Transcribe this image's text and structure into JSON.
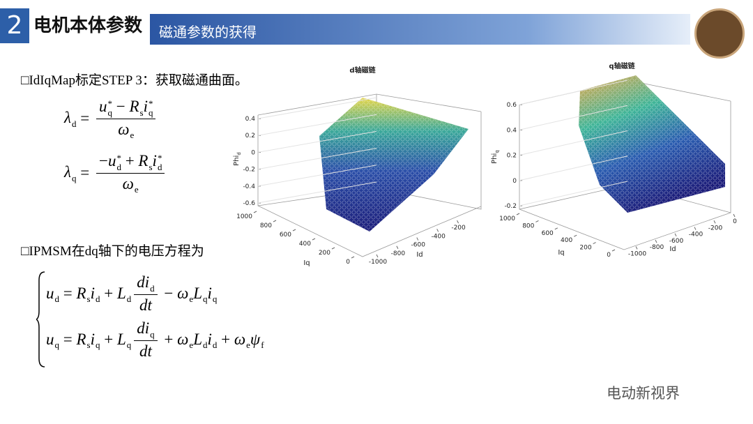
{
  "header": {
    "number": "2",
    "title": "电机本体参数",
    "subtitle": "磁通参数的获得"
  },
  "sections": [
    {
      "text": "□IdIqMap标定STEP 3：获取磁通曲面。"
    },
    {
      "text": "□IPMSM在dq轴下的电压方程为"
    }
  ],
  "flux_equations": [
    [
      [
        {
          "t": "λ",
          "sub": "d"
        },
        {
          "t": " = "
        }
      ],
      {
        "num": [
          {
            "t": "u",
            "sub": "q",
            "sup": "*"
          },
          {
            "t": " − "
          },
          {
            "t": "R",
            "sub": "s"
          },
          {
            "t": "i",
            "sub": "q",
            "sup": "*"
          }
        ],
        "den": [
          {
            "t": "ω",
            "sub": "e"
          }
        ]
      }
    ],
    [
      [
        {
          "t": "λ",
          "sub": "q"
        },
        {
          "t": " = "
        }
      ],
      {
        "num": [
          {
            "t": "−"
          },
          {
            "t": "u",
            "sub": "d",
            "sup": "*"
          },
          {
            "t": " + "
          },
          {
            "t": "R",
            "sub": "s"
          },
          {
            "t": "i",
            "sub": "d",
            "sup": "*"
          }
        ],
        "den": [
          {
            "t": "ω",
            "sub": "e"
          }
        ]
      }
    ]
  ],
  "voltage_equations": [
    [
      [
        {
          "t": "u",
          "sub": "d"
        },
        {
          "t": " = "
        },
        {
          "t": "R",
          "sub": "s"
        },
        {
          "t": "i",
          "sub": "d"
        },
        {
          "t": " + "
        },
        {
          "t": "L",
          "sub": "d"
        }
      ],
      {
        "num": [
          {
            "t": "di",
            "sub": "d"
          }
        ],
        "den": [
          {
            "t": "dt"
          }
        ]
      },
      [
        {
          "t": " − "
        },
        {
          "t": "ω",
          "sub": "e"
        },
        {
          "t": "L",
          "sub": "q"
        },
        {
          "t": "i",
          "sub": "q"
        }
      ]
    ],
    [
      [
        {
          "t": "u",
          "sub": "q"
        },
        {
          "t": " = "
        },
        {
          "t": "R",
          "sub": "s"
        },
        {
          "t": "i",
          "sub": "q"
        },
        {
          "t": " + "
        },
        {
          "t": "L",
          "sub": "q"
        }
      ],
      {
        "num": [
          {
            "t": "di",
            "sub": "q"
          }
        ],
        "den": [
          {
            "t": "dt"
          }
        ]
      },
      [
        {
          "t": " + "
        },
        {
          "t": "ω",
          "sub": "e"
        },
        {
          "t": "L",
          "sub": "d"
        },
        {
          "t": "i",
          "sub": "d"
        },
        {
          "t": " + "
        },
        {
          "t": "ω",
          "sub": "e"
        },
        {
          "t": "ψ",
          "sub": "f"
        }
      ]
    ]
  ],
  "figures": [
    {
      "title": "d轴磁链",
      "zlabel": {
        "t": "Phi",
        "sub": "d"
      },
      "xlabel": "Id",
      "ylabel": "Iq",
      "zlim": [
        -0.6,
        0.4
      ],
      "zticks": [
        0.4,
        0.2,
        0,
        -0.2,
        -0.4,
        -0.6
      ],
      "ylim": [
        0,
        1000
      ],
      "yticks": [
        1000,
        800,
        600,
        400,
        200,
        0
      ],
      "xlim": [
        -1000,
        -100
      ],
      "xticks": [
        -1000,
        -800,
        -600,
        -400,
        -200
      ]
    },
    {
      "title": "q轴磁链",
      "zlabel": {
        "t": "Phi",
        "sub": "q"
      },
      "xlabel": "Id",
      "ylabel": "Iq",
      "zlim": [
        -0.2,
        0.6
      ],
      "zticks": [
        0.6,
        0.4,
        0.2,
        0,
        -0.2
      ],
      "ylim": [
        0,
        1000
      ],
      "yticks": [
        1000,
        800,
        600,
        400,
        200,
        0
      ],
      "xlim": [
        -1100,
        0
      ],
      "xticks": [
        -1000,
        -800,
        -600,
        -400,
        -200,
        0
      ]
    }
  ],
  "watermark": "电动新视界"
}
